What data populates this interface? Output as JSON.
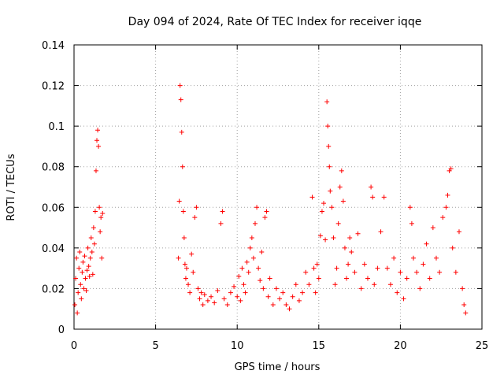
{
  "chart_data": {
    "type": "scatter",
    "title": "Day 094 of 2024, Rate Of TEC Index for receiver iqqe",
    "xlabel": "GPS time / hours",
    "ylabel": "ROTI / TECUs",
    "xlim": [
      0,
      25
    ],
    "ylim": [
      0,
      0.14
    ],
    "xticks": [
      0,
      5,
      10,
      15,
      20,
      25
    ],
    "yticks": [
      0,
      0.02,
      0.04,
      0.06,
      0.08,
      0.1,
      0.12,
      0.14
    ],
    "xtick_labels": [
      "0",
      "5",
      "10",
      "15",
      "20",
      "25"
    ],
    "ytick_labels": [
      "0",
      "0.02",
      "0.04",
      "0.06",
      "0.08",
      "0.1",
      "0.12",
      "0.14"
    ],
    "grid": true,
    "marker": "+",
    "color": "#ff0000",
    "series": [
      {
        "name": "ROTI",
        "points": [
          [
            0.05,
            0.012
          ],
          [
            0.1,
            0.025
          ],
          [
            0.15,
            0.035
          ],
          [
            0.2,
            0.008
          ],
          [
            0.25,
            0.018
          ],
          [
            0.3,
            0.03
          ],
          [
            0.35,
            0.038
          ],
          [
            0.4,
            0.022
          ],
          [
            0.45,
            0.015
          ],
          [
            0.5,
            0.028
          ],
          [
            0.55,
            0.033
          ],
          [
            0.6,
            0.02
          ],
          [
            0.65,
            0.036
          ],
          [
            0.7,
            0.025
          ],
          [
            0.75,
            0.019
          ],
          [
            0.8,
            0.029
          ],
          [
            0.85,
            0.04
          ],
          [
            0.9,
            0.031
          ],
          [
            0.95,
            0.026
          ],
          [
            1.0,
            0.035
          ],
          [
            1.05,
            0.045
          ],
          [
            1.1,
            0.038
          ],
          [
            1.15,
            0.027
          ],
          [
            1.2,
            0.05
          ],
          [
            1.25,
            0.042
          ],
          [
            1.3,
            0.058
          ],
          [
            1.35,
            0.078
          ],
          [
            1.4,
            0.093
          ],
          [
            1.45,
            0.098
          ],
          [
            1.5,
            0.09
          ],
          [
            1.55,
            0.06
          ],
          [
            1.6,
            0.048
          ],
          [
            1.65,
            0.055
          ],
          [
            1.7,
            0.035
          ],
          [
            1.75,
            0.057
          ],
          [
            6.4,
            0.035
          ],
          [
            6.45,
            0.063
          ],
          [
            6.5,
            0.12
          ],
          [
            6.55,
            0.113
          ],
          [
            6.6,
            0.097
          ],
          [
            6.65,
            0.08
          ],
          [
            6.7,
            0.058
          ],
          [
            6.75,
            0.045
          ],
          [
            6.8,
            0.032
          ],
          [
            6.85,
            0.025
          ],
          [
            6.9,
            0.03
          ],
          [
            7.0,
            0.022
          ],
          [
            7.1,
            0.018
          ],
          [
            7.2,
            0.037
          ],
          [
            7.3,
            0.028
          ],
          [
            7.4,
            0.055
          ],
          [
            7.5,
            0.06
          ],
          [
            7.6,
            0.02
          ],
          [
            7.7,
            0.015
          ],
          [
            7.8,
            0.018
          ],
          [
            7.9,
            0.012
          ],
          [
            8.0,
            0.017
          ],
          [
            8.2,
            0.014
          ],
          [
            8.4,
            0.016
          ],
          [
            8.6,
            0.013
          ],
          [
            8.8,
            0.019
          ],
          [
            9.0,
            0.052
          ],
          [
            9.1,
            0.058
          ],
          [
            9.2,
            0.015
          ],
          [
            9.4,
            0.012
          ],
          [
            9.6,
            0.018
          ],
          [
            9.8,
            0.021
          ],
          [
            10.0,
            0.016
          ],
          [
            10.1,
            0.026
          ],
          [
            10.2,
            0.014
          ],
          [
            10.3,
            0.03
          ],
          [
            10.4,
            0.022
          ],
          [
            10.5,
            0.018
          ],
          [
            10.6,
            0.033
          ],
          [
            10.7,
            0.028
          ],
          [
            10.8,
            0.04
          ],
          [
            10.9,
            0.045
          ],
          [
            11.0,
            0.035
          ],
          [
            11.1,
            0.052
          ],
          [
            11.2,
            0.06
          ],
          [
            11.3,
            0.03
          ],
          [
            11.4,
            0.024
          ],
          [
            11.5,
            0.038
          ],
          [
            11.6,
            0.02
          ],
          [
            11.7,
            0.055
          ],
          [
            11.8,
            0.058
          ],
          [
            11.9,
            0.016
          ],
          [
            12.0,
            0.025
          ],
          [
            12.2,
            0.012
          ],
          [
            12.4,
            0.02
          ],
          [
            12.6,
            0.015
          ],
          [
            12.8,
            0.018
          ],
          [
            13.0,
            0.012
          ],
          [
            13.2,
            0.01
          ],
          [
            13.4,
            0.016
          ],
          [
            13.6,
            0.022
          ],
          [
            13.8,
            0.014
          ],
          [
            14.0,
            0.018
          ],
          [
            14.2,
            0.028
          ],
          [
            14.4,
            0.022
          ],
          [
            14.6,
            0.065
          ],
          [
            14.7,
            0.03
          ],
          [
            14.8,
            0.018
          ],
          [
            14.9,
            0.032
          ],
          [
            15.0,
            0.025
          ],
          [
            15.1,
            0.046
          ],
          [
            15.2,
            0.058
          ],
          [
            15.3,
            0.062
          ],
          [
            15.4,
            0.044
          ],
          [
            15.5,
            0.112
          ],
          [
            15.55,
            0.1
          ],
          [
            15.6,
            0.09
          ],
          [
            15.65,
            0.08
          ],
          [
            15.7,
            0.068
          ],
          [
            15.8,
            0.06
          ],
          [
            15.9,
            0.045
          ],
          [
            16.0,
            0.022
          ],
          [
            16.1,
            0.03
          ],
          [
            16.2,
            0.052
          ],
          [
            16.3,
            0.07
          ],
          [
            16.4,
            0.078
          ],
          [
            16.5,
            0.063
          ],
          [
            16.6,
            0.04
          ],
          [
            16.7,
            0.025
          ],
          [
            16.8,
            0.032
          ],
          [
            16.9,
            0.045
          ],
          [
            17.0,
            0.038
          ],
          [
            17.2,
            0.028
          ],
          [
            17.4,
            0.047
          ],
          [
            17.6,
            0.02
          ],
          [
            17.8,
            0.032
          ],
          [
            18.0,
            0.025
          ],
          [
            18.2,
            0.07
          ],
          [
            18.3,
            0.065
          ],
          [
            18.4,
            0.022
          ],
          [
            18.6,
            0.03
          ],
          [
            18.8,
            0.048
          ],
          [
            19.0,
            0.065
          ],
          [
            19.2,
            0.03
          ],
          [
            19.4,
            0.022
          ],
          [
            19.6,
            0.035
          ],
          [
            19.8,
            0.018
          ],
          [
            20.0,
            0.028
          ],
          [
            20.2,
            0.015
          ],
          [
            20.4,
            0.025
          ],
          [
            20.6,
            0.06
          ],
          [
            20.7,
            0.052
          ],
          [
            20.8,
            0.035
          ],
          [
            21.0,
            0.028
          ],
          [
            21.2,
            0.02
          ],
          [
            21.4,
            0.032
          ],
          [
            21.6,
            0.042
          ],
          [
            21.8,
            0.025
          ],
          [
            22.0,
            0.05
          ],
          [
            22.2,
            0.035
          ],
          [
            22.4,
            0.028
          ],
          [
            22.6,
            0.055
          ],
          [
            22.8,
            0.06
          ],
          [
            22.9,
            0.066
          ],
          [
            23.0,
            0.078
          ],
          [
            23.1,
            0.079
          ],
          [
            23.2,
            0.04
          ],
          [
            23.4,
            0.028
          ],
          [
            23.6,
            0.048
          ],
          [
            23.8,
            0.02
          ],
          [
            23.9,
            0.012
          ],
          [
            24.0,
            0.008
          ]
        ]
      }
    ]
  }
}
